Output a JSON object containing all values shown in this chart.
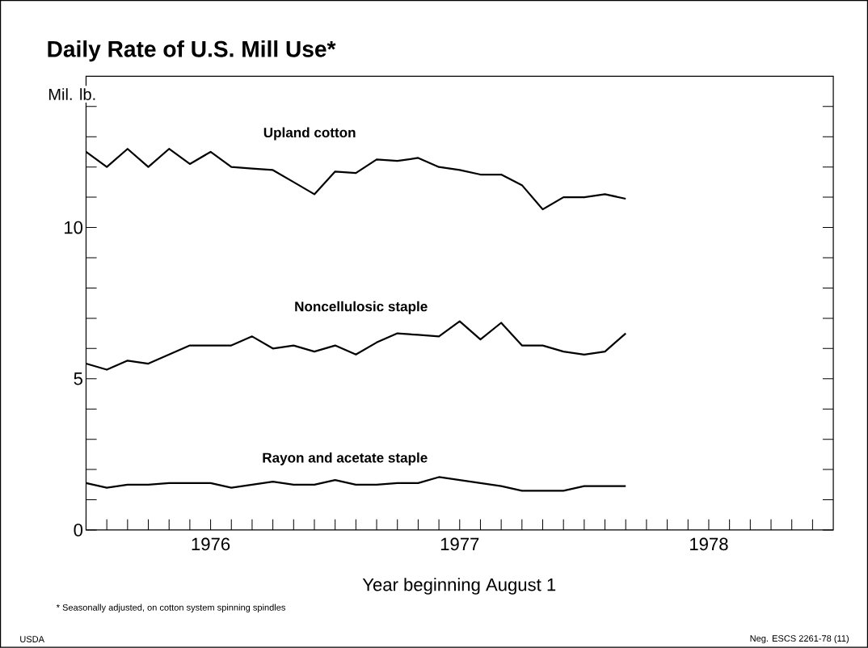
{
  "chart_data": {
    "type": "line",
    "title": "Daily Rate of U.S. Mill Use*",
    "ylabel": "Mil. lb.",
    "xlabel": "Year beginning August 1",
    "categories": [
      null,
      null,
      null,
      null,
      null,
      null,
      "1976",
      null,
      null,
      null,
      null,
      null,
      null,
      null,
      null,
      null,
      null,
      null,
      "1977",
      null,
      null,
      null,
      null,
      null,
      null,
      null,
      null,
      null,
      null,
      null,
      "1978",
      null,
      null,
      null,
      null,
      null
    ],
    "series": [
      {
        "name": "Upland cotton",
        "color": "#000000",
        "values": [
          12.5,
          12.0,
          12.6,
          12.0,
          12.6,
          12.1,
          12.5,
          12.0,
          11.95,
          11.9,
          11.5,
          11.1,
          11.85,
          11.8,
          12.25,
          12.2,
          12.3,
          12.0,
          11.9,
          11.75,
          11.75,
          11.4,
          10.6,
          11.0,
          11.0,
          11.1,
          10.95,
          null,
          null,
          null,
          null,
          null,
          null,
          null,
          null,
          null
        ]
      },
      {
        "name": "Noncellulosic staple",
        "color": "#000000",
        "values": [
          5.5,
          5.3,
          5.6,
          5.5,
          5.8,
          6.1,
          6.1,
          6.1,
          6.4,
          6.0,
          6.1,
          5.9,
          6.1,
          5.8,
          6.2,
          6.5,
          6.45,
          6.4,
          6.9,
          6.3,
          6.85,
          6.1,
          6.1,
          5.9,
          5.8,
          5.9,
          6.5,
          null,
          null,
          null,
          null,
          null,
          null,
          null,
          null,
          null
        ]
      },
      {
        "name": "Rayon and acetate staple",
        "color": "#000000",
        "values": [
          1.55,
          1.4,
          1.5,
          1.5,
          1.55,
          1.55,
          1.55,
          1.4,
          1.5,
          1.6,
          1.5,
          1.5,
          1.65,
          1.5,
          1.5,
          1.55,
          1.55,
          1.75,
          1.65,
          1.55,
          1.45,
          1.3,
          1.3,
          1.3,
          1.45,
          1.45,
          1.45,
          null,
          null,
          null,
          null,
          null,
          null,
          null,
          null,
          null
        ]
      }
    ],
    "ylim": [
      0,
      15
    ],
    "yticks": [
      0,
      {
        "value": 1,
        "label": null
      },
      {
        "value": 2,
        "label": null
      },
      {
        "value": 3,
        "label": null
      },
      {
        "value": 4,
        "label": null
      },
      5,
      {
        "value": 6,
        "label": null
      },
      {
        "value": 7,
        "label": null
      },
      {
        "value": 8,
        "label": null
      },
      {
        "value": 9,
        "label": null
      },
      10,
      {
        "value": 11,
        "label": null
      },
      {
        "value": 12,
        "label": null
      },
      {
        "value": 13,
        "label": null
      },
      {
        "value": 14,
        "label": null
      }
    ],
    "marker": "none",
    "line_style": "solid",
    "annotations": [
      "* Seasonally adjusted, on cotton system spinning spindles",
      "USDA",
      "Neg. ESCS 2261-78 (11)"
    ]
  }
}
